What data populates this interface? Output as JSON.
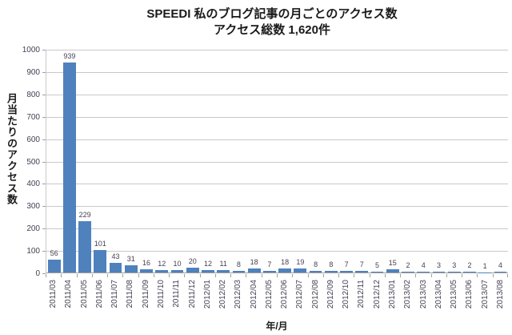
{
  "colors": {
    "bar": "#4f81bd",
    "gridline": "#c9c9c9",
    "axis_line": "#9f9f9f",
    "tick_label": "#453f52",
    "title": "#1a1a1a"
  },
  "chart_data": {
    "type": "bar",
    "title": "SPEEDI 私のブログ記事の月ごとのアクセス数",
    "subtitle": "アクセス総数 1,620件",
    "xlabel": "年/月",
    "ylabel": "月当たりのアクセス数",
    "ylim": [
      0,
      1000
    ],
    "ytick_interval": 100,
    "grid": true,
    "legend": false,
    "data_labels": true,
    "categories": [
      "2011/03",
      "2011/04",
      "2011/05",
      "2011/06",
      "2011/07",
      "2011/08",
      "2011/09",
      "2011/10",
      "2011/11",
      "2011/12",
      "2012/01",
      "2012/02",
      "2012/03",
      "2012/04",
      "2012/05",
      "2012/06",
      "2012/07",
      "2012/08",
      "2012/09",
      "2012/10",
      "2012/11",
      "2012/12",
      "2013/01",
      "2013/02",
      "2013/03",
      "2013/04",
      "2013/05",
      "2013/06",
      "2013/07",
      "2013/08"
    ],
    "values": [
      56,
      939,
      229,
      101,
      43,
      31,
      16,
      12,
      10,
      20,
      12,
      11,
      8,
      18,
      7,
      18,
      19,
      8,
      8,
      7,
      7,
      5,
      15,
      2,
      4,
      3,
      3,
      2,
      1,
      4
    ]
  }
}
